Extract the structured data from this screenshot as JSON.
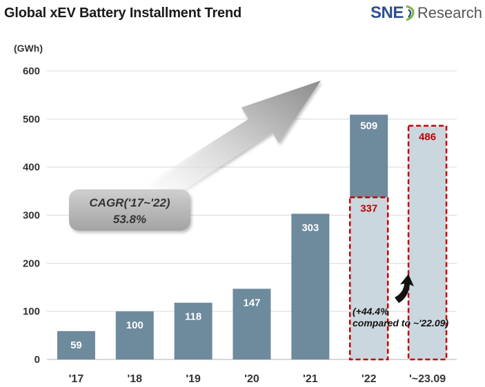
{
  "title": "Global xEV Battery Installment Trend",
  "logo": {
    "part1": "SNE",
    "part2": "Research"
  },
  "chart_data": {
    "type": "bar",
    "title": "Global xEV Battery Installment Trend",
    "ylabel": "(GWh)",
    "xlabel": "",
    "ylim": [
      0,
      600
    ],
    "yticks": [
      0,
      100,
      200,
      300,
      400,
      500,
      600
    ],
    "grid": true,
    "categories": [
      "'17",
      "'18",
      "'19",
      "'20",
      "'21",
      "'22",
      "'~23.09"
    ],
    "values": [
      59,
      100,
      118,
      147,
      303,
      509,
      486
    ],
    "value_labels": [
      "59",
      "100",
      "118",
      "147",
      "303",
      "509",
      "486"
    ],
    "partial_22_value": 337,
    "partial_22_label": "337",
    "annotations": {
      "cagr_line1": "CAGR('17~'22)",
      "cagr_line2": "53.8%",
      "growth_line1": "(+44.4%",
      "growth_line2": "compared to ~'22.09)"
    },
    "colors": {
      "bar": "#6e8a9d",
      "light_bar": "#cbd7df",
      "highlight": "#c00000",
      "grid": "#d9d9d9"
    }
  }
}
